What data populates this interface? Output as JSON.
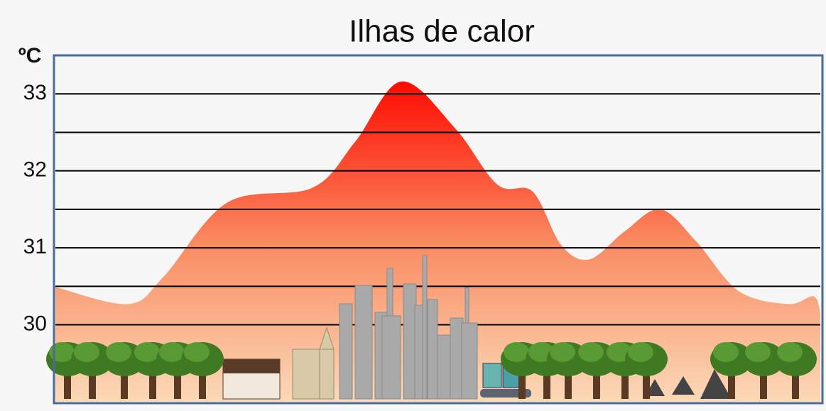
{
  "chart_data": {
    "type": "area",
    "title": "Ilhas de calor",
    "y_label": "ºC",
    "x": [
      0,
      9.5,
      14.1,
      22.5,
      33.6,
      39.2,
      45.2,
      52.2,
      57.8,
      62.4,
      66.1,
      69.8,
      74.5,
      79.1,
      83.8,
      89.3,
      95.8,
      99.1,
      100
    ],
    "values": [
      30.49,
      30.27,
      30.62,
      31.59,
      31.78,
      32.38,
      33.16,
      32.56,
      31.82,
      31.73,
      31.04,
      30.85,
      31.22,
      31.5,
      31.08,
      30.44,
      30.27,
      30.37,
      30.16
    ],
    "colors": [
      "#ff0a00",
      "#f98a60",
      "#fbd9b8"
    ],
    "xlim": [
      0,
      100
    ],
    "ylim": [
      29,
      33.5
    ],
    "yticks": [
      30,
      31,
      32,
      33
    ],
    "minor_yticks": [
      30.5,
      31.5,
      32.5
    ],
    "grid": true
  }
}
